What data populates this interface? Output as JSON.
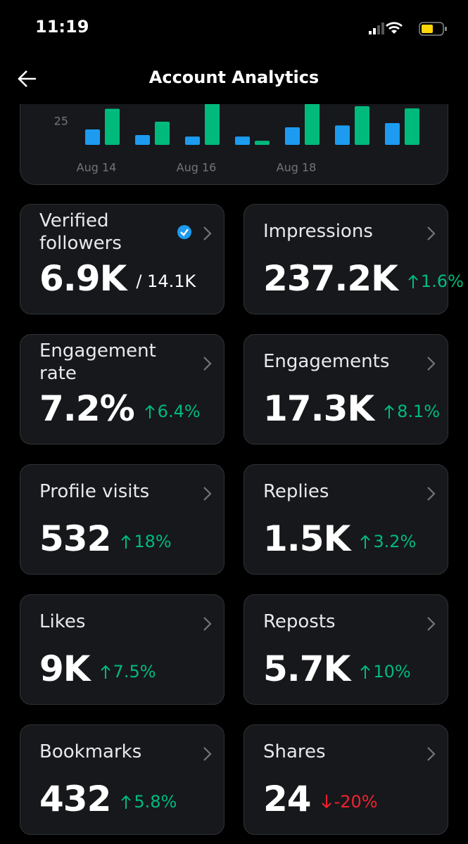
{
  "status_bar": {
    "time": "11:19"
  },
  "header": {
    "title": "Account Analytics"
  },
  "chart": {
    "type": "bar",
    "categories": [
      "Aug 14",
      null,
      "Aug 16",
      null,
      "Aug 18",
      null,
      null
    ],
    "series": [
      {
        "color": "#1d9bf0",
        "values": [
          16.7,
          10.6,
          9,
          9,
          19,
          21,
          23.5
        ]
      },
      {
        "color": "#00ba7c",
        "values": [
          39,
          25,
          46,
          4.5,
          46,
          41.7,
          39.4
        ]
      }
    ],
    "ylim": [
      0,
      44
    ],
    "yticks": [
      25
    ],
    "grid": false
  },
  "cards": [
    {
      "label": "Verified followers",
      "value": "6.9K",
      "sub": "/ 14.1K",
      "verified": true
    },
    {
      "label": "Impressions",
      "value": "237.2K",
      "change": "1.6%",
      "direction": "up"
    },
    {
      "label": "Engagement rate",
      "value": "7.2%",
      "change": "6.4%",
      "direction": "up"
    },
    {
      "label": "Engagements",
      "value": "17.3K",
      "change": "8.1%",
      "direction": "up"
    },
    {
      "label": "Profile visits",
      "value": "532",
      "change": "18%",
      "direction": "up"
    },
    {
      "label": "Replies",
      "value": "1.5K",
      "change": "3.2%",
      "direction": "up"
    },
    {
      "label": "Likes",
      "value": "9K",
      "change": "7.5%",
      "direction": "up"
    },
    {
      "label": "Reposts",
      "value": "5.7K",
      "change": "10%",
      "direction": "up"
    },
    {
      "label": "Bookmarks",
      "value": "432",
      "change": "5.8%",
      "direction": "up"
    },
    {
      "label": "Shares",
      "value": "24",
      "change": "-20%",
      "direction": "down"
    }
  ]
}
